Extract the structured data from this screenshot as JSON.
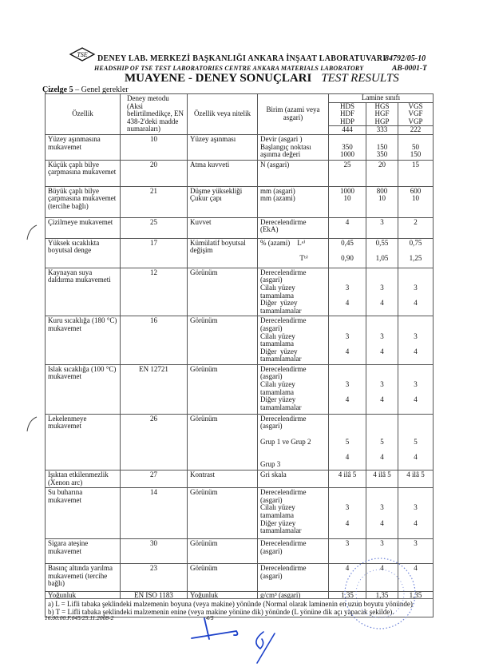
{
  "header": {
    "logo_text": "TSE",
    "institution_tr": "DENEY LAB. MERKEZİ BAŞKANLIĞI ANKARA İNŞAAT LABORATUVARI",
    "institution_en": "HEADSHIP OF TSE TEST LABORATORIES CENTRE  ANKARA MATERIALS  LABORATORY",
    "report_no": "84792/05-10",
    "lab_code": "AB-0001-T",
    "title_tr": "MUAYENE - DENEY SONUÇLARI",
    "title_en": "TEST RESULTS"
  },
  "caption": {
    "label": "Çizelge 5",
    "text": " – Genel gerekler"
  },
  "table": {
    "headers": {
      "property": "Özellik",
      "method": "Deney metodu (Aksi belirtilmedikçe, EN 438-2'deki madde numaraları)",
      "characteristic": "Özellik veya nitelik",
      "unit": "Birim (azami veya asgari)",
      "class_group": "Lamine sınıfı",
      "classes": [
        [
          "HDS",
          "HDF",
          "HDP"
        ],
        [
          "HGS",
          "HGF",
          "HGP"
        ],
        [
          "VGS",
          "VGF",
          "VGP"
        ]
      ],
      "class_codes": [
        "444",
        "333",
        "222"
      ]
    },
    "rows": [
      {
        "property": "Yüzey aşınmasına mukavemet",
        "method": "10",
        "characteristic": "Yüzey aşınması",
        "unit": [
          "Devir (asgari )",
          "Başlangıç noktası",
          "aşınma değeri"
        ],
        "values": [
          [
            "",
            "350",
            "1000"
          ],
          [
            "",
            "150",
            "350"
          ],
          [
            "",
            "50",
            "150"
          ]
        ]
      },
      {
        "property": "Küçük çaplı bilye çarpmasına mukavemet",
        "method": "20",
        "characteristic": "Atma kuvveti",
        "unit": [
          "N (asgari)"
        ],
        "values": [
          [
            "25"
          ],
          [
            "20"
          ],
          [
            "15"
          ]
        ]
      },
      {
        "property": "Büyük çaplı bilye çarpmasına mukavemet (tercihe bağlı)",
        "method": "21",
        "characteristic": "Düşme yüksekliği Çukur çapı",
        "unit": [
          "mm (asgari)",
          "mm (azami)"
        ],
        "values": [
          [
            "1000",
            "10"
          ],
          [
            "800",
            "10"
          ],
          [
            "600",
            "10"
          ]
        ]
      },
      {
        "property": "Çizilmeye mukavemet",
        "method": "25",
        "characteristic": "Kuvvet",
        "unit": [
          "Derecelendirme",
          "(EkA)"
        ],
        "values": [
          [
            "4"
          ],
          [
            "3"
          ],
          [
            "2"
          ]
        ]
      },
      {
        "property": "Yüksek sıcaklıkta boyutsal denge",
        "method": "17",
        "characteristic": "Kümülatif boyutsal değişim",
        "unit": [
          "% (azami)    Lᵃ⁾",
          "",
          "                      Tᵇ⁾"
        ],
        "values": [
          [
            "0,45",
            "",
            "0,90"
          ],
          [
            "0,55",
            "",
            "1,05"
          ],
          [
            "0,75",
            "",
            "1,25"
          ]
        ]
      },
      {
        "property": "Kaynayan suya daldırma mukavemeti",
        "method": "12",
        "characteristic": "Görünüm",
        "unit": [
          "Derecelendirme",
          "(asgari)",
          "Cilalı yüzey",
          "tamamlama",
          "Diğer  yüzey",
          "tamamlamalar"
        ],
        "values": [
          [
            "",
            "",
            "3",
            "",
            "4"
          ],
          [
            "",
            "",
            "3",
            "",
            "4"
          ],
          [
            "",
            "",
            "3",
            "",
            "4"
          ]
        ]
      },
      {
        "property": "Kuru sıcaklığa (180 °C) mukavemet",
        "method": "16",
        "characteristic": "Görünüm",
        "unit": [
          "Derecelendirme",
          "(asgari)",
          "Cilalı yüzey",
          "tamamlama",
          "Diğer  yüzey",
          "tamamlamalar"
        ],
        "values": [
          [
            "",
            "",
            "3",
            "",
            "4"
          ],
          [
            "",
            "",
            "3",
            "",
            "4"
          ],
          [
            "",
            "",
            "3",
            "",
            "4"
          ]
        ]
      },
      {
        "property": "Islak sıcaklığa (100 °C) mukavemet",
        "method": "EN 12721",
        "characteristic": "Görünüm",
        "unit": [
          "Derecelendirme",
          "(asgari)",
          "Cilalı yüzey",
          "tamamlama",
          "Diğer yüzey",
          "tamamlamalar"
        ],
        "values": [
          [
            "",
            "",
            "3",
            "",
            "4"
          ],
          [
            "",
            "",
            "3",
            "",
            "4"
          ],
          [
            "",
            "",
            "3",
            "",
            "4"
          ]
        ]
      },
      {
        "property": "Lekelenmeye mukavemet",
        "method": "26",
        "characteristic": "Görünüm",
        "unit": [
          "Derecelendirme",
          "(asgari)",
          "",
          "Grup 1 ve Grup 2",
          "",
          "",
          "Grup 3"
        ],
        "values": [
          [
            "",
            "",
            "",
            "5",
            "",
            "4"
          ],
          [
            "",
            "",
            "",
            "5",
            "",
            "4"
          ],
          [
            "",
            "",
            "",
            "5",
            "",
            "4"
          ]
        ]
      },
      {
        "property": "Işıktan etkilenmezlik (Xenon arc)",
        "method": "27",
        "characteristic": "Kontrast",
        "unit": [
          "Gri skala"
        ],
        "values": [
          [
            "4 ilâ 5"
          ],
          [
            "4 ilâ 5"
          ],
          [
            "4 ilâ 5"
          ]
        ]
      },
      {
        "property": "Su buharına mukavemet",
        "method": "14",
        "characteristic": "Görünüm",
        "unit": [
          "Derecelendirme",
          "(asgari)",
          "Cilalı yüzey",
          "tamamlama",
          "Diğer yüzey",
          "tamamlamalar"
        ],
        "values": [
          [
            "",
            "",
            "3",
            "",
            "4"
          ],
          [
            "",
            "",
            "3",
            "",
            "4"
          ],
          [
            "",
            "",
            "3",
            "",
            "4"
          ]
        ]
      },
      {
        "property": "Sigara ateşine mukavemet",
        "method": "30",
        "characteristic": "Görünüm",
        "unit": [
          "Derecelendirme",
          "(asgari)"
        ],
        "values": [
          [
            "3"
          ],
          [
            "3"
          ],
          [
            "3"
          ]
        ]
      },
      {
        "property": "Basınç altında yarılma mukavemeti (tercihe bağlı)",
        "method": "23",
        "characteristic": "Görünüm",
        "unit": [
          "Derecelendirme",
          "(asgari)"
        ],
        "values": [
          [
            "4"
          ],
          [
            "4"
          ],
          [
            "4"
          ]
        ]
      },
      {
        "property": "Yoğunluk",
        "method": "EN ISO 1183",
        "characteristic": "Yoğunluk",
        "unit": [
          "g/cm³ (asgari)"
        ],
        "values": [
          [
            "1,35"
          ],
          [
            "1,35"
          ],
          [
            "1,35"
          ]
        ]
      }
    ],
    "notes": [
      "a) L = Lifli tabaka şeklindeki malzemenin boyuna (veya makine) yönünde (Normal olarak laminenin en uzun boyutu yönünde)",
      "b) T = Lifli tabaka şeklindeki malzemenin enine (veya makine yönüne dik) yönünde (L yönüne dik açı yapacak şekilde)."
    ]
  },
  "footer": {
    "form_code": "16.00.00.F.045/25.11.2008-2",
    "page": "4/5"
  },
  "colors": {
    "ink": "#111111",
    "signature": "#1a3fc9",
    "stamp": "#6f84d8"
  }
}
